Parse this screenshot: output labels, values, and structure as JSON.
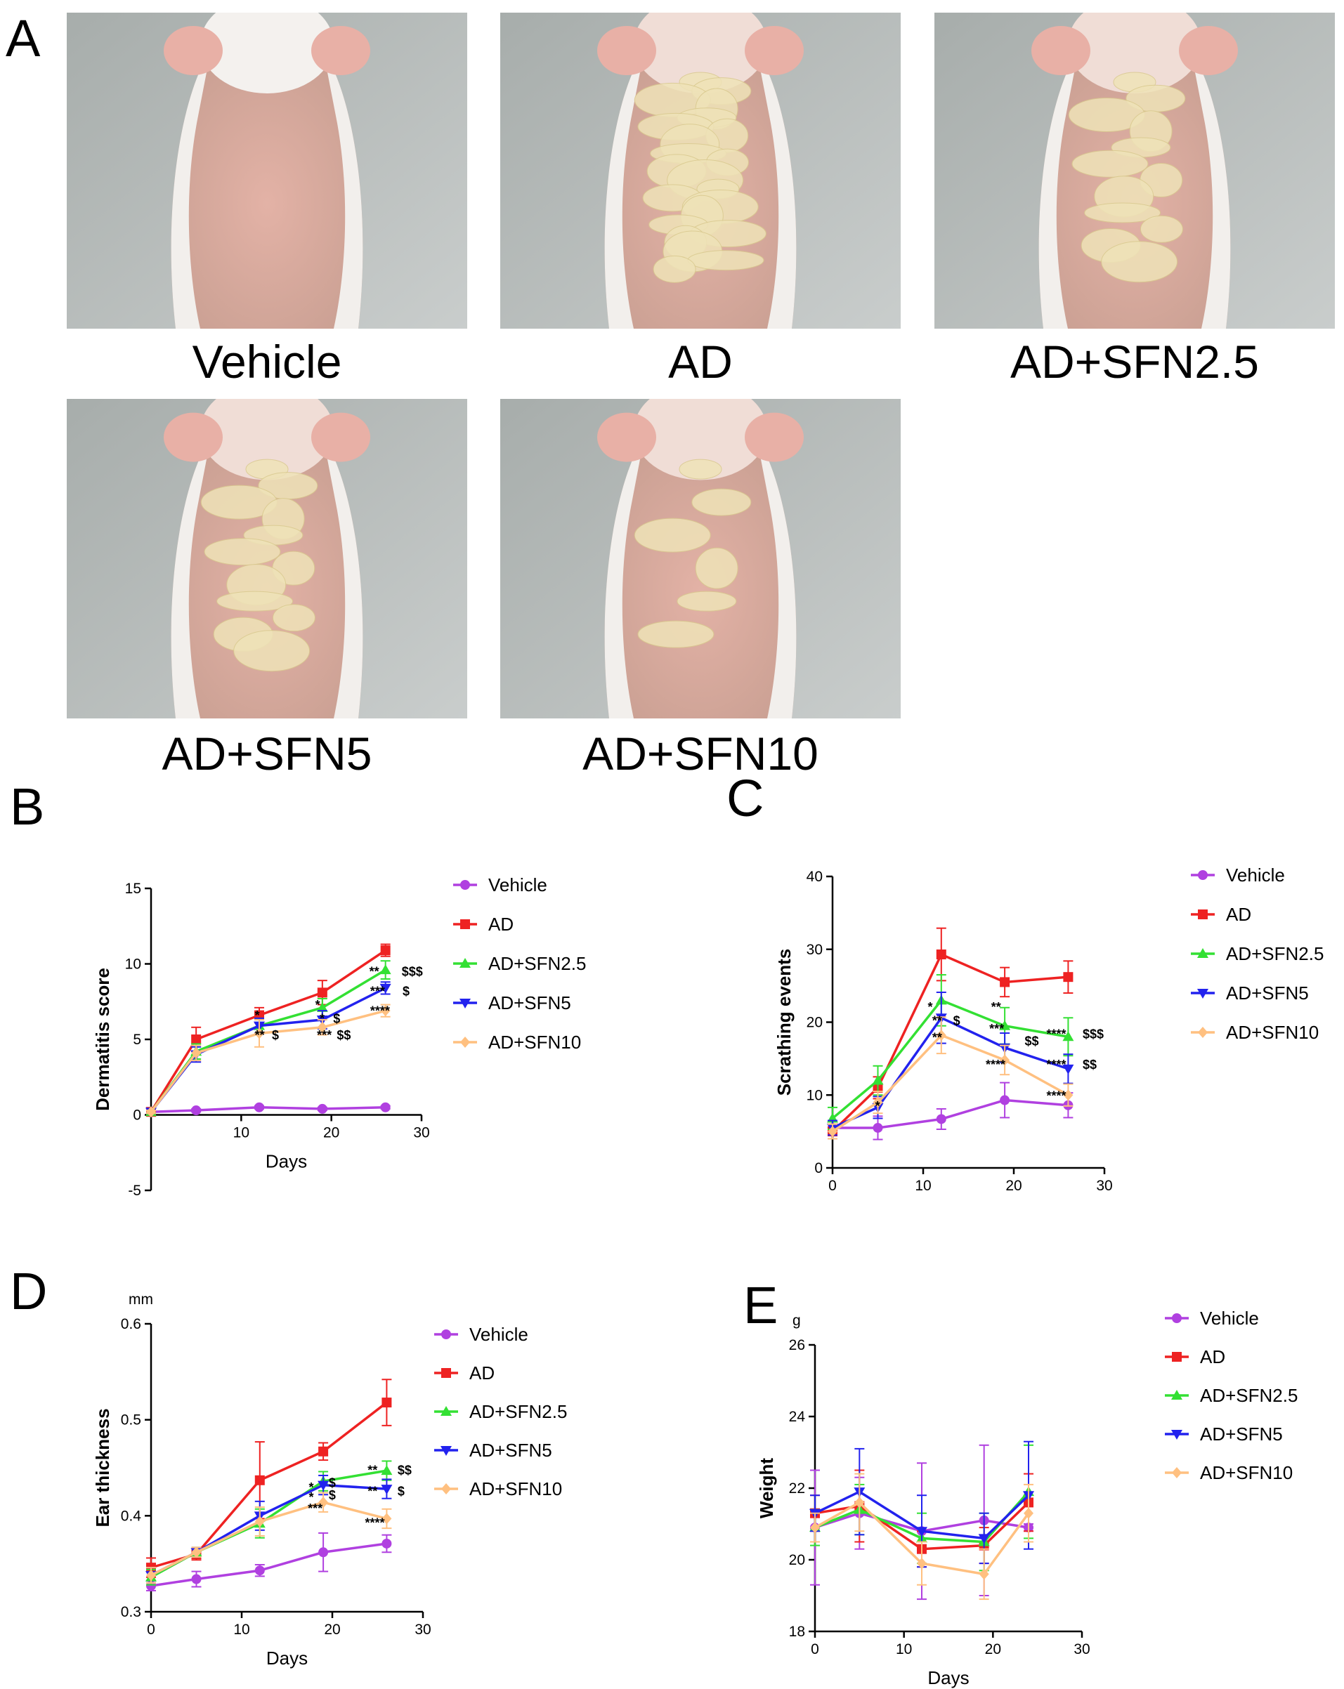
{
  "panel_letters": {
    "a": "A",
    "b": "B",
    "c": "C",
    "d": "D",
    "e": "E"
  },
  "photos": [
    {
      "label": "Vehicle",
      "lesion": "none"
    },
    {
      "label": "AD",
      "lesion": "severe"
    },
    {
      "label": "AD+SFN2.5",
      "lesion": "moderate"
    },
    {
      "label": "AD+SFN5",
      "lesion": "moderate"
    },
    {
      "label": "AD+SFN10",
      "lesion": "mild"
    }
  ],
  "series_style": [
    {
      "name": "Vehicle",
      "color": "#b040e0",
      "marker": "circle"
    },
    {
      "name": "AD",
      "color": "#ee2222",
      "marker": "square"
    },
    {
      "name": "AD+SFN2.5",
      "color": "#33e033",
      "marker": "triangle-up"
    },
    {
      "name": "AD+SFN5",
      "color": "#2222ee",
      "marker": "triangle-down"
    },
    {
      "name": "AD+SFN10",
      "color": "#ffc080",
      "marker": "diamond"
    }
  ],
  "chart_data": [
    {
      "panel": "B",
      "type": "line",
      "title": "",
      "xlabel": "Days",
      "ylabel": "Dermatitis score",
      "yunit": "",
      "xlim": [
        0,
        30
      ],
      "ylim": [
        -5,
        15
      ],
      "xticks": [
        10,
        20,
        30
      ],
      "yticks": [
        -5,
        0,
        5,
        10,
        15
      ],
      "x": [
        0,
        5,
        12,
        19,
        26
      ],
      "series": [
        {
          "name": "Vehicle",
          "values": [
            0.2,
            0.3,
            0.5,
            0.4,
            0.5
          ],
          "errors": [
            0.1,
            0.1,
            0.1,
            0.1,
            0.1
          ]
        },
        {
          "name": "AD",
          "values": [
            0.2,
            5.0,
            6.6,
            8.1,
            10.9
          ],
          "errors": [
            0.1,
            0.8,
            0.5,
            0.8,
            0.4
          ]
        },
        {
          "name": "AD+SFN2.5",
          "values": [
            0.2,
            4.2,
            5.9,
            7.1,
            9.6
          ],
          "errors": [
            0.1,
            0.5,
            0.5,
            0.6,
            0.6
          ]
        },
        {
          "name": "AD+SFN5",
          "values": [
            0.2,
            4.0,
            5.9,
            6.3,
            8.4
          ],
          "errors": [
            0.1,
            0.5,
            0.5,
            0.6,
            0.4
          ]
        },
        {
          "name": "AD+SFN10",
          "values": [
            0.2,
            4.1,
            5.4,
            5.8,
            6.9
          ],
          "errors": [
            0.1,
            0.5,
            0.9,
            0.5,
            0.4
          ]
        }
      ],
      "annotations": [
        {
          "text": "*",
          "x": 11.5,
          "y": 6.3
        },
        {
          "text": "**",
          "x": 11.5,
          "y": 5.0
        },
        {
          "text": "$",
          "x": 13.4,
          "y": 5.0
        },
        {
          "text": "*",
          "x": 18.2,
          "y": 7.0
        },
        {
          "text": "*",
          "x": 18.7,
          "y": 6.1
        },
        {
          "text": "$",
          "x": 20.2,
          "y": 6.1
        },
        {
          "text": "***",
          "x": 18.4,
          "y": 5.0
        },
        {
          "text": "$$",
          "x": 20.6,
          "y": 5.0
        },
        {
          "text": "**",
          "x": 24.2,
          "y": 9.2
        },
        {
          "text": "$$$",
          "x": 27.8,
          "y": 9.2
        },
        {
          "text": "***",
          "x": 24.3,
          "y": 7.9
        },
        {
          "text": "$",
          "x": 27.9,
          "y": 7.9
        },
        {
          "text": "****",
          "x": 24.3,
          "y": 6.6
        }
      ]
    },
    {
      "panel": "C",
      "type": "line",
      "title": "",
      "xlabel": "",
      "ylabel": "Scrathing events",
      "yunit": "",
      "xlim": [
        0,
        30
      ],
      "ylim": [
        0,
        40
      ],
      "xticks": [
        0,
        10,
        20,
        30
      ],
      "yticks": [
        0,
        10,
        20,
        30,
        40
      ],
      "x": [
        0,
        5,
        12,
        19,
        26
      ],
      "series": [
        {
          "name": "Vehicle",
          "values": [
            5.5,
            5.5,
            6.7,
            9.3,
            8.6
          ],
          "errors": [
            1.0,
            1.6,
            1.4,
            2.4,
            1.7
          ]
        },
        {
          "name": "AD",
          "values": [
            5.0,
            11.0,
            29.3,
            25.5,
            26.2
          ],
          "errors": [
            1.0,
            1.5,
            3.6,
            2.0,
            2.2
          ]
        },
        {
          "name": "AD+SFN2.5",
          "values": [
            6.8,
            12.0,
            23.0,
            19.5,
            18.0
          ],
          "errors": [
            1.5,
            2.0,
            3.5,
            2.5,
            2.6
          ]
        },
        {
          "name": "AD+SFN5",
          "values": [
            5.5,
            8.3,
            20.6,
            16.5,
            13.6
          ],
          "errors": [
            1.0,
            1.5,
            3.5,
            2.0,
            2.0
          ]
        },
        {
          "name": "AD+SFN10",
          "values": [
            5.0,
            9.0,
            18.2,
            14.8,
            10.0
          ],
          "errors": [
            1.0,
            1.5,
            2.5,
            2.0,
            1.5
          ]
        }
      ],
      "annotations": [
        {
          "text": "*",
          "x": 10.5,
          "y": 21.5
        },
        {
          "text": "**",
          "x": 11.0,
          "y": 19.6
        },
        {
          "text": "$",
          "x": 13.3,
          "y": 19.6
        },
        {
          "text": "**",
          "x": 11.0,
          "y": 17.3
        },
        {
          "text": "*",
          "x": 4.7,
          "y": 7.9
        },
        {
          "text": "**",
          "x": 17.5,
          "y": 21.5
        },
        {
          "text": "***",
          "x": 17.3,
          "y": 18.5
        },
        {
          "text": "$$",
          "x": 21.2,
          "y": 16.8
        },
        {
          "text": "****",
          "x": 16.9,
          "y": 13.6
        },
        {
          "text": "****",
          "x": 23.6,
          "y": 17.8
        },
        {
          "text": "$$$",
          "x": 27.6,
          "y": 17.8
        },
        {
          "text": "****",
          "x": 23.6,
          "y": 13.6
        },
        {
          "text": "$$",
          "x": 27.6,
          "y": 13.6
        },
        {
          "text": "****",
          "x": 23.6,
          "y": 9.3
        }
      ]
    },
    {
      "panel": "D",
      "type": "line",
      "title": "",
      "xlabel": "Days",
      "ylabel": "Ear thickness",
      "yunit": "mm",
      "xlim": [
        0,
        30
      ],
      "ylim": [
        0.3,
        0.6
      ],
      "xticks": [
        0,
        10,
        20,
        30
      ],
      "yticks": [
        0.3,
        0.4,
        0.5,
        0.6
      ],
      "x": [
        0,
        5,
        12,
        19,
        26
      ],
      "series": [
        {
          "name": "Vehicle",
          "values": [
            0.327,
            0.334,
            0.343,
            0.362,
            0.371
          ],
          "errors": [
            0.005,
            0.008,
            0.006,
            0.02,
            0.009
          ]
        },
        {
          "name": "AD",
          "values": [
            0.346,
            0.36,
            0.437,
            0.467,
            0.518
          ],
          "errors": [
            0.01,
            0.006,
            0.04,
            0.009,
            0.024
          ]
        },
        {
          "name": "AD+SFN2.5",
          "values": [
            0.336,
            0.362,
            0.392,
            0.436,
            0.447
          ],
          "errors": [
            0.008,
            0.005,
            0.015,
            0.01,
            0.01
          ]
        },
        {
          "name": "AD+SFN5",
          "values": [
            0.338,
            0.362,
            0.4,
            0.432,
            0.428
          ],
          "errors": [
            0.008,
            0.005,
            0.015,
            0.01,
            0.01
          ]
        },
        {
          "name": "AD+SFN10",
          "values": [
            0.338,
            0.362,
            0.394,
            0.414,
            0.397
          ],
          "errors": [
            0.008,
            0.005,
            0.015,
            0.01,
            0.01
          ]
        }
      ],
      "annotations": [
        {
          "text": "*",
          "x": 17.4,
          "y": 0.425
        },
        {
          "text": "*",
          "x": 17.4,
          "y": 0.415
        },
        {
          "text": "$",
          "x": 19.6,
          "y": 0.43
        },
        {
          "text": "$",
          "x": 19.6,
          "y": 0.417
        },
        {
          "text": "***",
          "x": 17.3,
          "y": 0.403
        },
        {
          "text": "**",
          "x": 23.9,
          "y": 0.443
        },
        {
          "text": "$$",
          "x": 27.2,
          "y": 0.443
        },
        {
          "text": "**",
          "x": 23.9,
          "y": 0.421
        },
        {
          "text": "$",
          "x": 27.2,
          "y": 0.421
        },
        {
          "text": "****",
          "x": 23.6,
          "y": 0.388
        }
      ]
    },
    {
      "panel": "E",
      "type": "line",
      "title": "",
      "xlabel": "Days",
      "ylabel": "Weight",
      "yunit": "g",
      "xlim": [
        0,
        30
      ],
      "ylim": [
        18,
        26
      ],
      "xticks": [
        0,
        10,
        20,
        30
      ],
      "yticks": [
        18,
        20,
        22,
        24,
        26
      ],
      "x": [
        0,
        5,
        12,
        19,
        24
      ],
      "series": [
        {
          "name": "Vehicle",
          "values": [
            20.9,
            21.3,
            20.8,
            21.1,
            20.9
          ],
          "errors": [
            1.6,
            1.0,
            1.9,
            2.1,
            0.1
          ]
        },
        {
          "name": "AD",
          "values": [
            21.3,
            21.5,
            20.3,
            20.4,
            21.6
          ],
          "errors": [
            0.5,
            1.0,
            0.5,
            0.5,
            0.8
          ]
        },
        {
          "name": "AD+SFN2.5",
          "values": [
            20.9,
            21.4,
            20.6,
            20.5,
            21.9
          ],
          "errors": [
            0.5,
            0.7,
            0.7,
            0.8,
            1.3
          ]
        },
        {
          "name": "AD+SFN5",
          "values": [
            21.3,
            21.9,
            20.8,
            20.6,
            21.8
          ],
          "errors": [
            0.5,
            1.2,
            1.0,
            0.7,
            1.5
          ]
        },
        {
          "name": "AD+SFN10",
          "values": [
            20.9,
            21.6,
            19.9,
            19.6,
            21.3
          ],
          "errors": [
            0.4,
            0.8,
            0.6,
            0.7,
            0.8
          ]
        }
      ],
      "annotations": []
    }
  ]
}
